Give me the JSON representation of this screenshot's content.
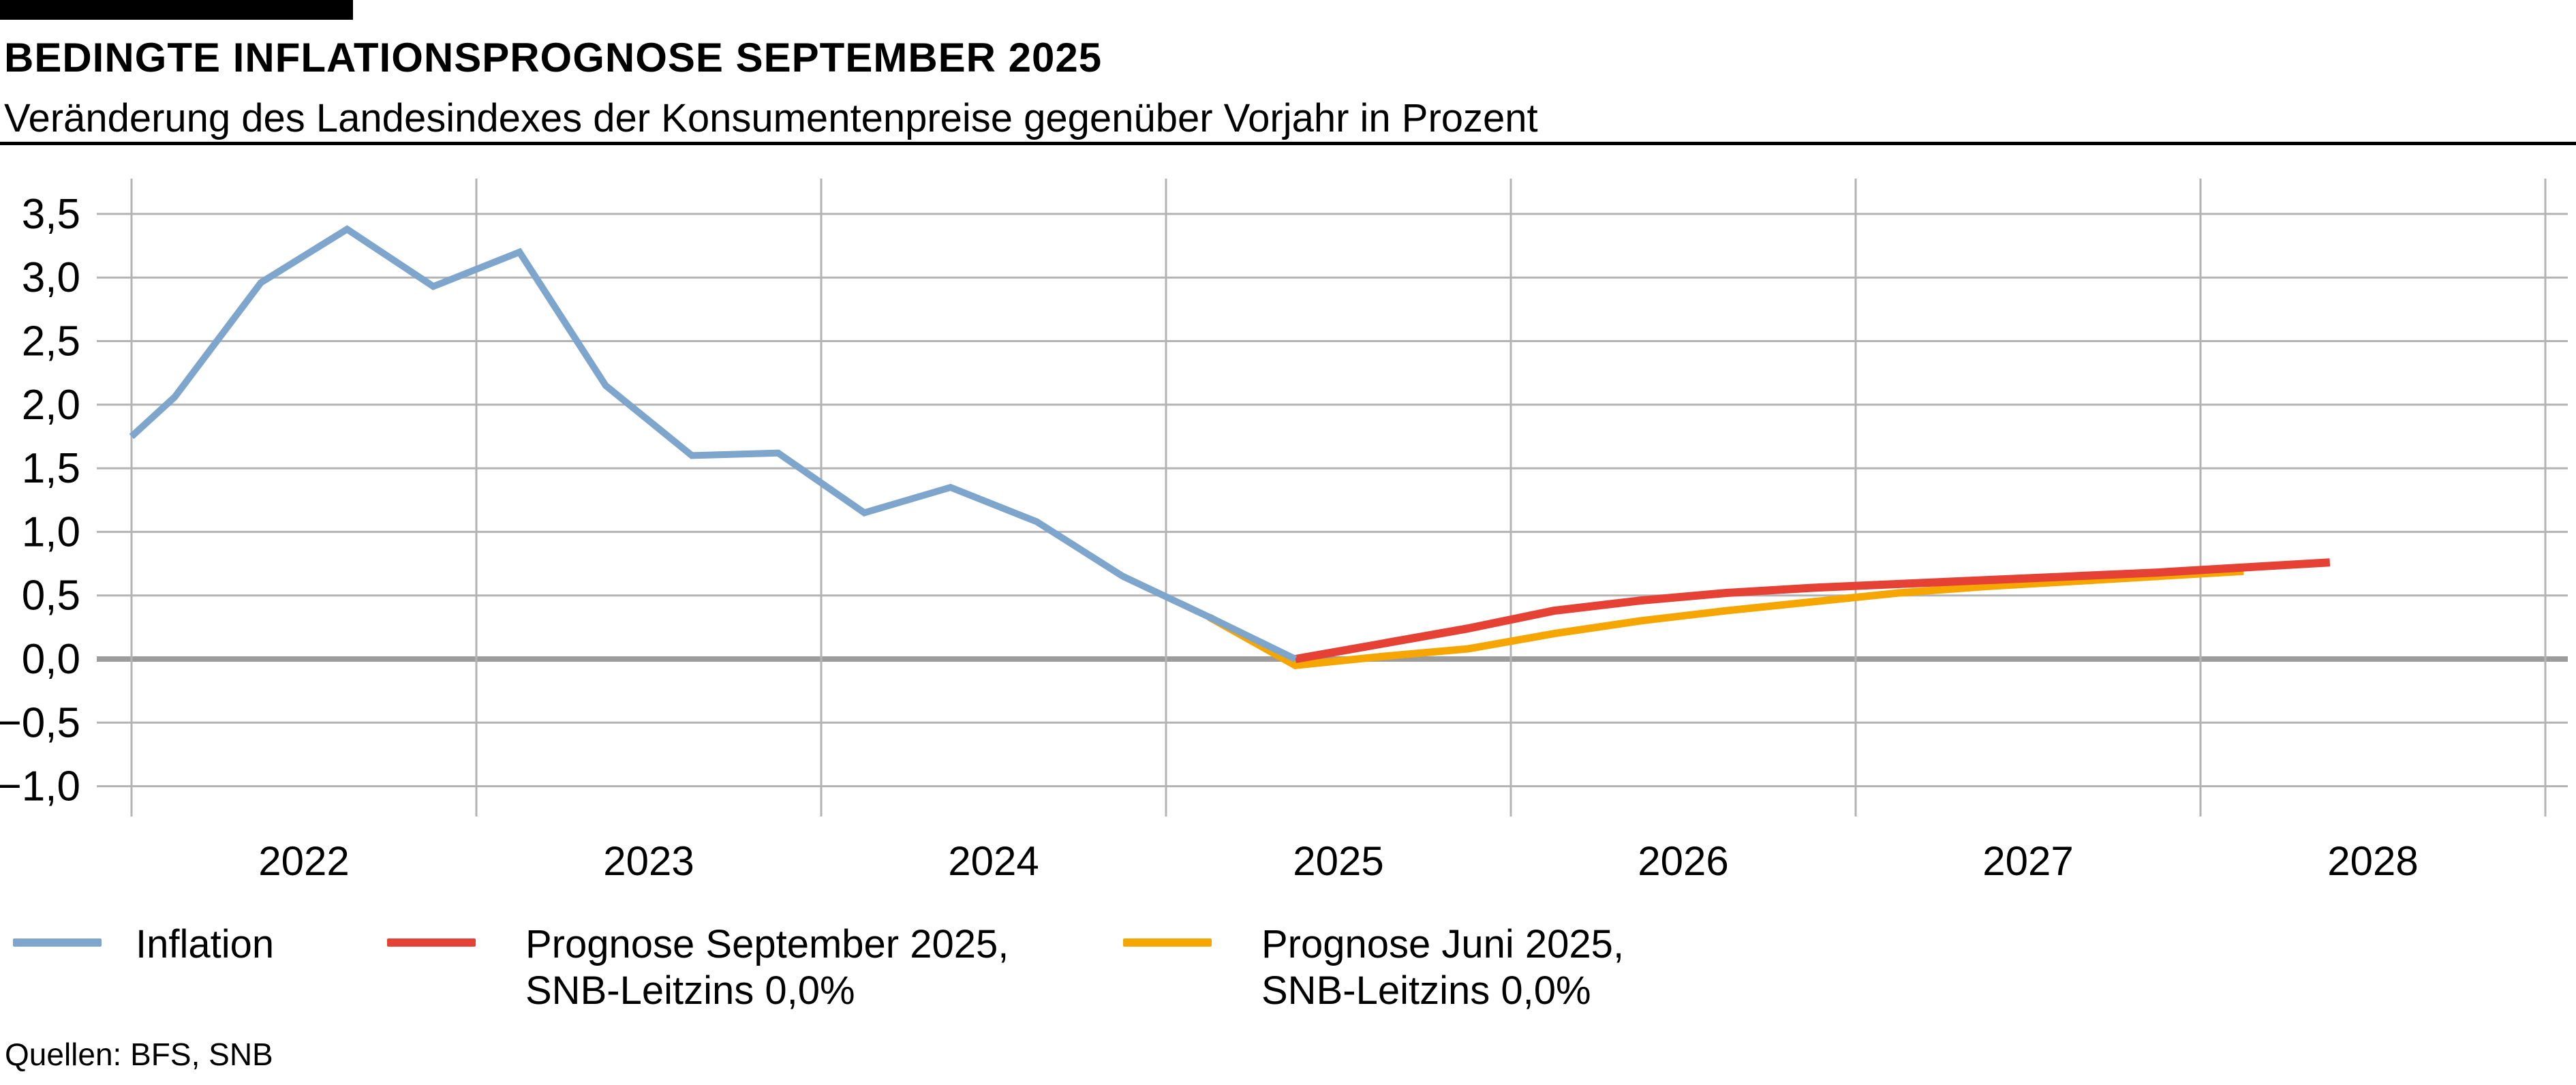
{
  "header": {
    "title": "BEDINGTE INFLATIONSPROGNOSE SEPTEMBER 2025",
    "subtitle": "Veränderung des Landesindexes der Konsumentenpreise gegenüber Vorjahr in Prozent"
  },
  "footer": {
    "source": "Quellen: BFS, SNB"
  },
  "colors": {
    "inflation": "#7EA5CB",
    "forecast_september": "#E64135",
    "forecast_june": "#F5A600",
    "grid": "#B3B3B3",
    "zero_line": "#9C9C9C",
    "text": "#000000",
    "accent_bar": "#000000"
  },
  "legend": {
    "items": [
      {
        "key": "inflation",
        "label_line1": "Inflation",
        "label_line2": ""
      },
      {
        "key": "forecast_september",
        "label_line1": "Prognose September 2025,",
        "label_line2": "SNB-Leitzins 0,0%"
      },
      {
        "key": "forecast_june",
        "label_line1": "Prognose Juni 2025,",
        "label_line2": "SNB-Leitzins 0,0%"
      }
    ]
  },
  "chart_data": {
    "type": "line",
    "title": "Bedingte Inflationsprognose September 2025",
    "xlabel": "",
    "ylabel": "Veränderung des Landesindexes der Konsumentenpreise gegenüber Vorjahr in Prozent",
    "x_range": [
      2022,
      2029
    ],
    "x_tick_years": [
      "2022",
      "2023",
      "2024",
      "2025",
      "2026",
      "2027",
      "2028"
    ],
    "y_range": [
      -1.0,
      3.5
    ],
    "y_step": 0.5,
    "y_ticks": [
      3.5,
      3.0,
      2.5,
      2.0,
      1.5,
      1.0,
      0.5,
      0.0,
      -0.5,
      -1.0
    ],
    "y_tick_labels": [
      "3,5",
      "3,0",
      "2,5",
      "2,0",
      "1,5",
      "1,0",
      "0,5",
      "0,0",
      "−0,5",
      "−1,0"
    ],
    "grid": true,
    "legend_position": "bottom",
    "series": [
      {
        "key": "inflation",
        "name": "Inflation",
        "color": "#7EA5CB",
        "stroke_width": 10,
        "z": 3,
        "points": [
          [
            2022.0,
            1.75
          ],
          [
            2022.125,
            2.06
          ],
          [
            2022.375,
            2.96
          ],
          [
            2022.625,
            3.38
          ],
          [
            2022.875,
            2.93
          ],
          [
            2023.125,
            3.2
          ],
          [
            2023.375,
            2.15
          ],
          [
            2023.625,
            1.6
          ],
          [
            2023.875,
            1.62
          ],
          [
            2024.125,
            1.15
          ],
          [
            2024.375,
            1.35
          ],
          [
            2024.625,
            1.08
          ],
          [
            2024.875,
            0.65
          ],
          [
            2025.125,
            0.33
          ],
          [
            2025.375,
            0.0
          ]
        ]
      },
      {
        "key": "forecast_september",
        "name": "Prognose September 2025, SNB-Leitzins 0,0%",
        "color": "#E64135",
        "stroke_width": 12,
        "z": 2,
        "points": [
          [
            2025.375,
            0.0
          ],
          [
            2025.625,
            0.12
          ],
          [
            2025.875,
            0.24
          ],
          [
            2026.125,
            0.38
          ],
          [
            2026.375,
            0.46
          ],
          [
            2026.625,
            0.52
          ],
          [
            2026.875,
            0.56
          ],
          [
            2027.125,
            0.59
          ],
          [
            2027.375,
            0.62
          ],
          [
            2027.625,
            0.65
          ],
          [
            2027.875,
            0.68
          ],
          [
            2028.125,
            0.72
          ],
          [
            2028.375,
            0.76
          ]
        ]
      },
      {
        "key": "forecast_june",
        "name": "Prognose Juni 2025, SNB-Leitzins 0,0%",
        "color": "#F5A600",
        "stroke_width": 11,
        "z": 1,
        "points": [
          [
            2025.125,
            0.33
          ],
          [
            2025.375,
            -0.05
          ],
          [
            2025.625,
            0.02
          ],
          [
            2025.875,
            0.08
          ],
          [
            2026.125,
            0.2
          ],
          [
            2026.375,
            0.3
          ],
          [
            2026.625,
            0.38
          ],
          [
            2026.875,
            0.45
          ],
          [
            2027.125,
            0.52
          ],
          [
            2027.375,
            0.57
          ],
          [
            2027.625,
            0.61
          ],
          [
            2027.875,
            0.65
          ],
          [
            2028.125,
            0.69
          ]
        ]
      }
    ]
  }
}
